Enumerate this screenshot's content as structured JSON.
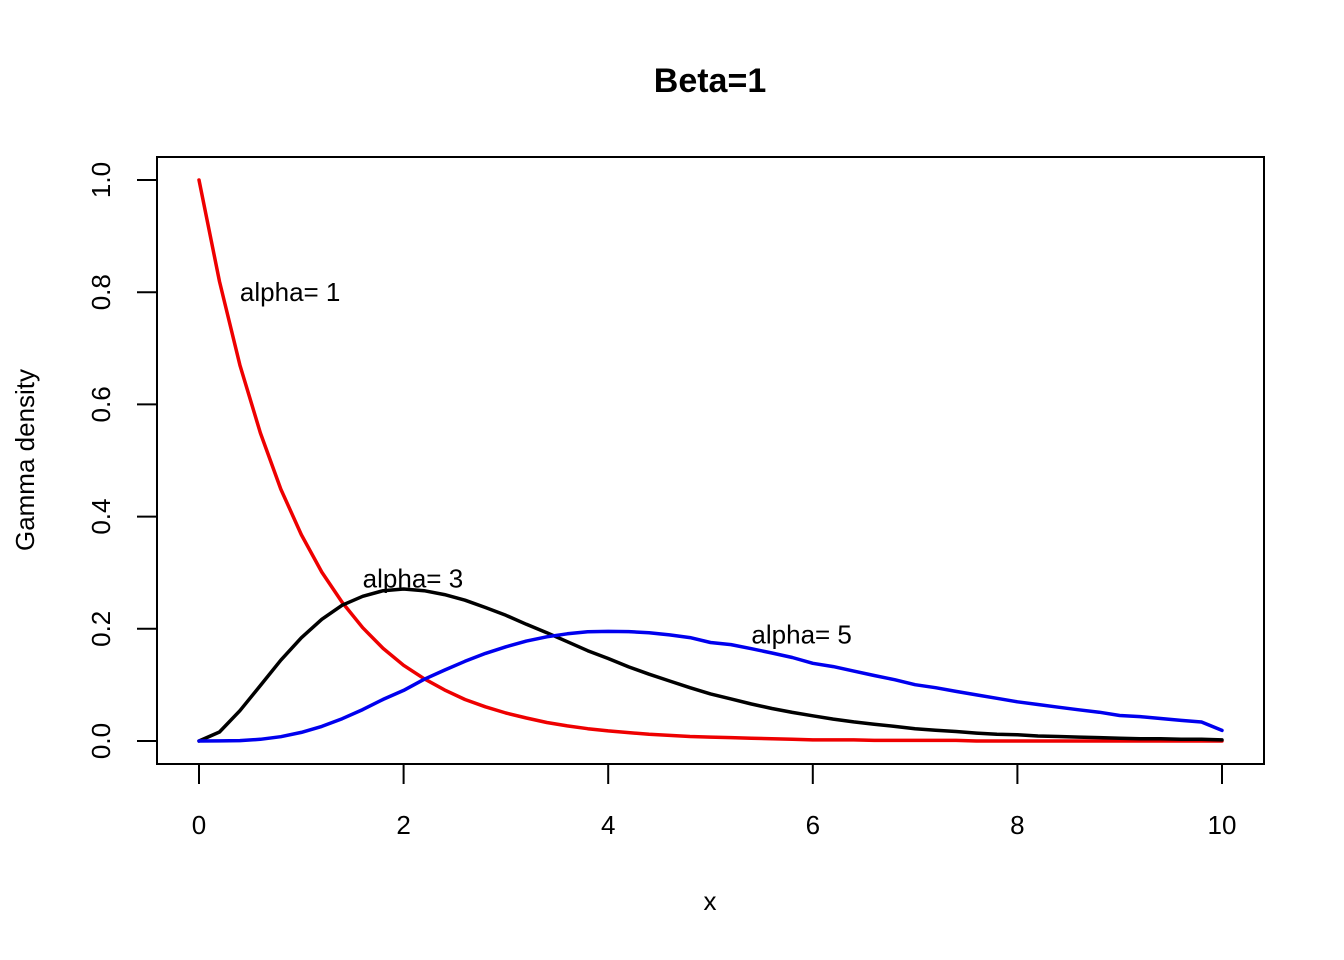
{
  "chart_data": {
    "type": "line",
    "title": "Beta=1",
    "xlabel": "x",
    "ylabel": "Gamma density",
    "xlim": [
      0,
      10
    ],
    "ylim": [
      0,
      1.0
    ],
    "x_ticks": [
      "0",
      "2",
      "4",
      "6",
      "8",
      "10"
    ],
    "y_ticks": [
      "0.0",
      "0.2",
      "0.4",
      "0.6",
      "0.8",
      "1.0"
    ],
    "grid": false,
    "x": [
      0,
      0.2,
      0.4,
      0.6,
      0.8,
      1.0,
      1.2,
      1.4,
      1.6,
      1.8,
      2.0,
      2.2,
      2.4,
      2.6,
      2.8,
      3.0,
      3.2,
      3.4,
      3.6,
      3.8,
      4.0,
      4.2,
      4.4,
      4.6,
      4.8,
      5.0,
      5.2,
      5.4,
      5.6,
      5.8,
      6.0,
      6.2,
      6.4,
      6.6,
      6.8,
      7.0,
      7.2,
      7.4,
      7.6,
      7.8,
      8.0,
      8.2,
      8.4,
      8.6,
      8.8,
      9.0,
      9.2,
      9.4,
      9.6,
      9.8,
      10.0
    ],
    "series": [
      {
        "color": "#ee0000",
        "values": [
          1.0,
          0.819,
          0.67,
          0.549,
          0.449,
          0.368,
          0.301,
          0.247,
          0.202,
          0.165,
          0.135,
          0.111,
          0.091,
          0.074,
          0.061,
          0.05,
          0.041,
          0.033,
          0.027,
          0.022,
          0.018,
          0.015,
          0.012,
          0.01,
          0.008,
          0.007,
          0.006,
          0.005,
          0.004,
          0.003,
          0.002,
          0.002,
          0.002,
          0.001,
          0.001,
          0.001,
          0.001,
          0.001,
          0.0,
          0.0,
          0.0,
          0.0,
          0.0,
          0.0,
          0.0,
          0.0,
          0.0,
          0.0,
          0.0,
          0.0,
          0.0
        ]
      },
      {
        "color": "#000000",
        "values": [
          0.0,
          0.016,
          0.054,
          0.099,
          0.144,
          0.184,
          0.217,
          0.242,
          0.258,
          0.268,
          0.271,
          0.268,
          0.261,
          0.251,
          0.238,
          0.224,
          0.208,
          0.193,
          0.177,
          0.161,
          0.147,
          0.132,
          0.119,
          0.107,
          0.095,
          0.084,
          0.075,
          0.066,
          0.058,
          0.051,
          0.045,
          0.039,
          0.034,
          0.03,
          0.026,
          0.022,
          0.019,
          0.017,
          0.014,
          0.012,
          0.011,
          0.009,
          0.008,
          0.007,
          0.006,
          0.005,
          0.004,
          0.004,
          0.003,
          0.003,
          0.002
        ]
      },
      {
        "color": "#0000ee",
        "values": [
          0.0,
          0.0001,
          0.0007,
          0.003,
          0.0077,
          0.0153,
          0.0261,
          0.0397,
          0.0559,
          0.0741,
          0.0902,
          0.11,
          0.1263,
          0.1421,
          0.1562,
          0.168,
          0.178,
          0.1857,
          0.1911,
          0.1946,
          0.1954,
          0.195,
          0.1928,
          0.1891,
          0.1843,
          0.1755,
          0.1718,
          0.1645,
          0.1568,
          0.1488,
          0.1385,
          0.1326,
          0.1246,
          0.1168,
          0.1093,
          0.1003,
          0.095,
          0.0884,
          0.0821,
          0.0761,
          0.0698,
          0.065,
          0.0602,
          0.0556,
          0.0513,
          0.0455,
          0.0435,
          0.0401,
          0.0368,
          0.0338,
          0.0189
        ]
      }
    ],
    "annotations": [
      {
        "text": "alpha= 1",
        "x": 0.4,
        "y": 0.8
      },
      {
        "text": "alpha= 3",
        "x": 1.6,
        "y": 0.29
      },
      {
        "text": "alpha= 5",
        "x": 5.4,
        "y": 0.19
      }
    ]
  }
}
